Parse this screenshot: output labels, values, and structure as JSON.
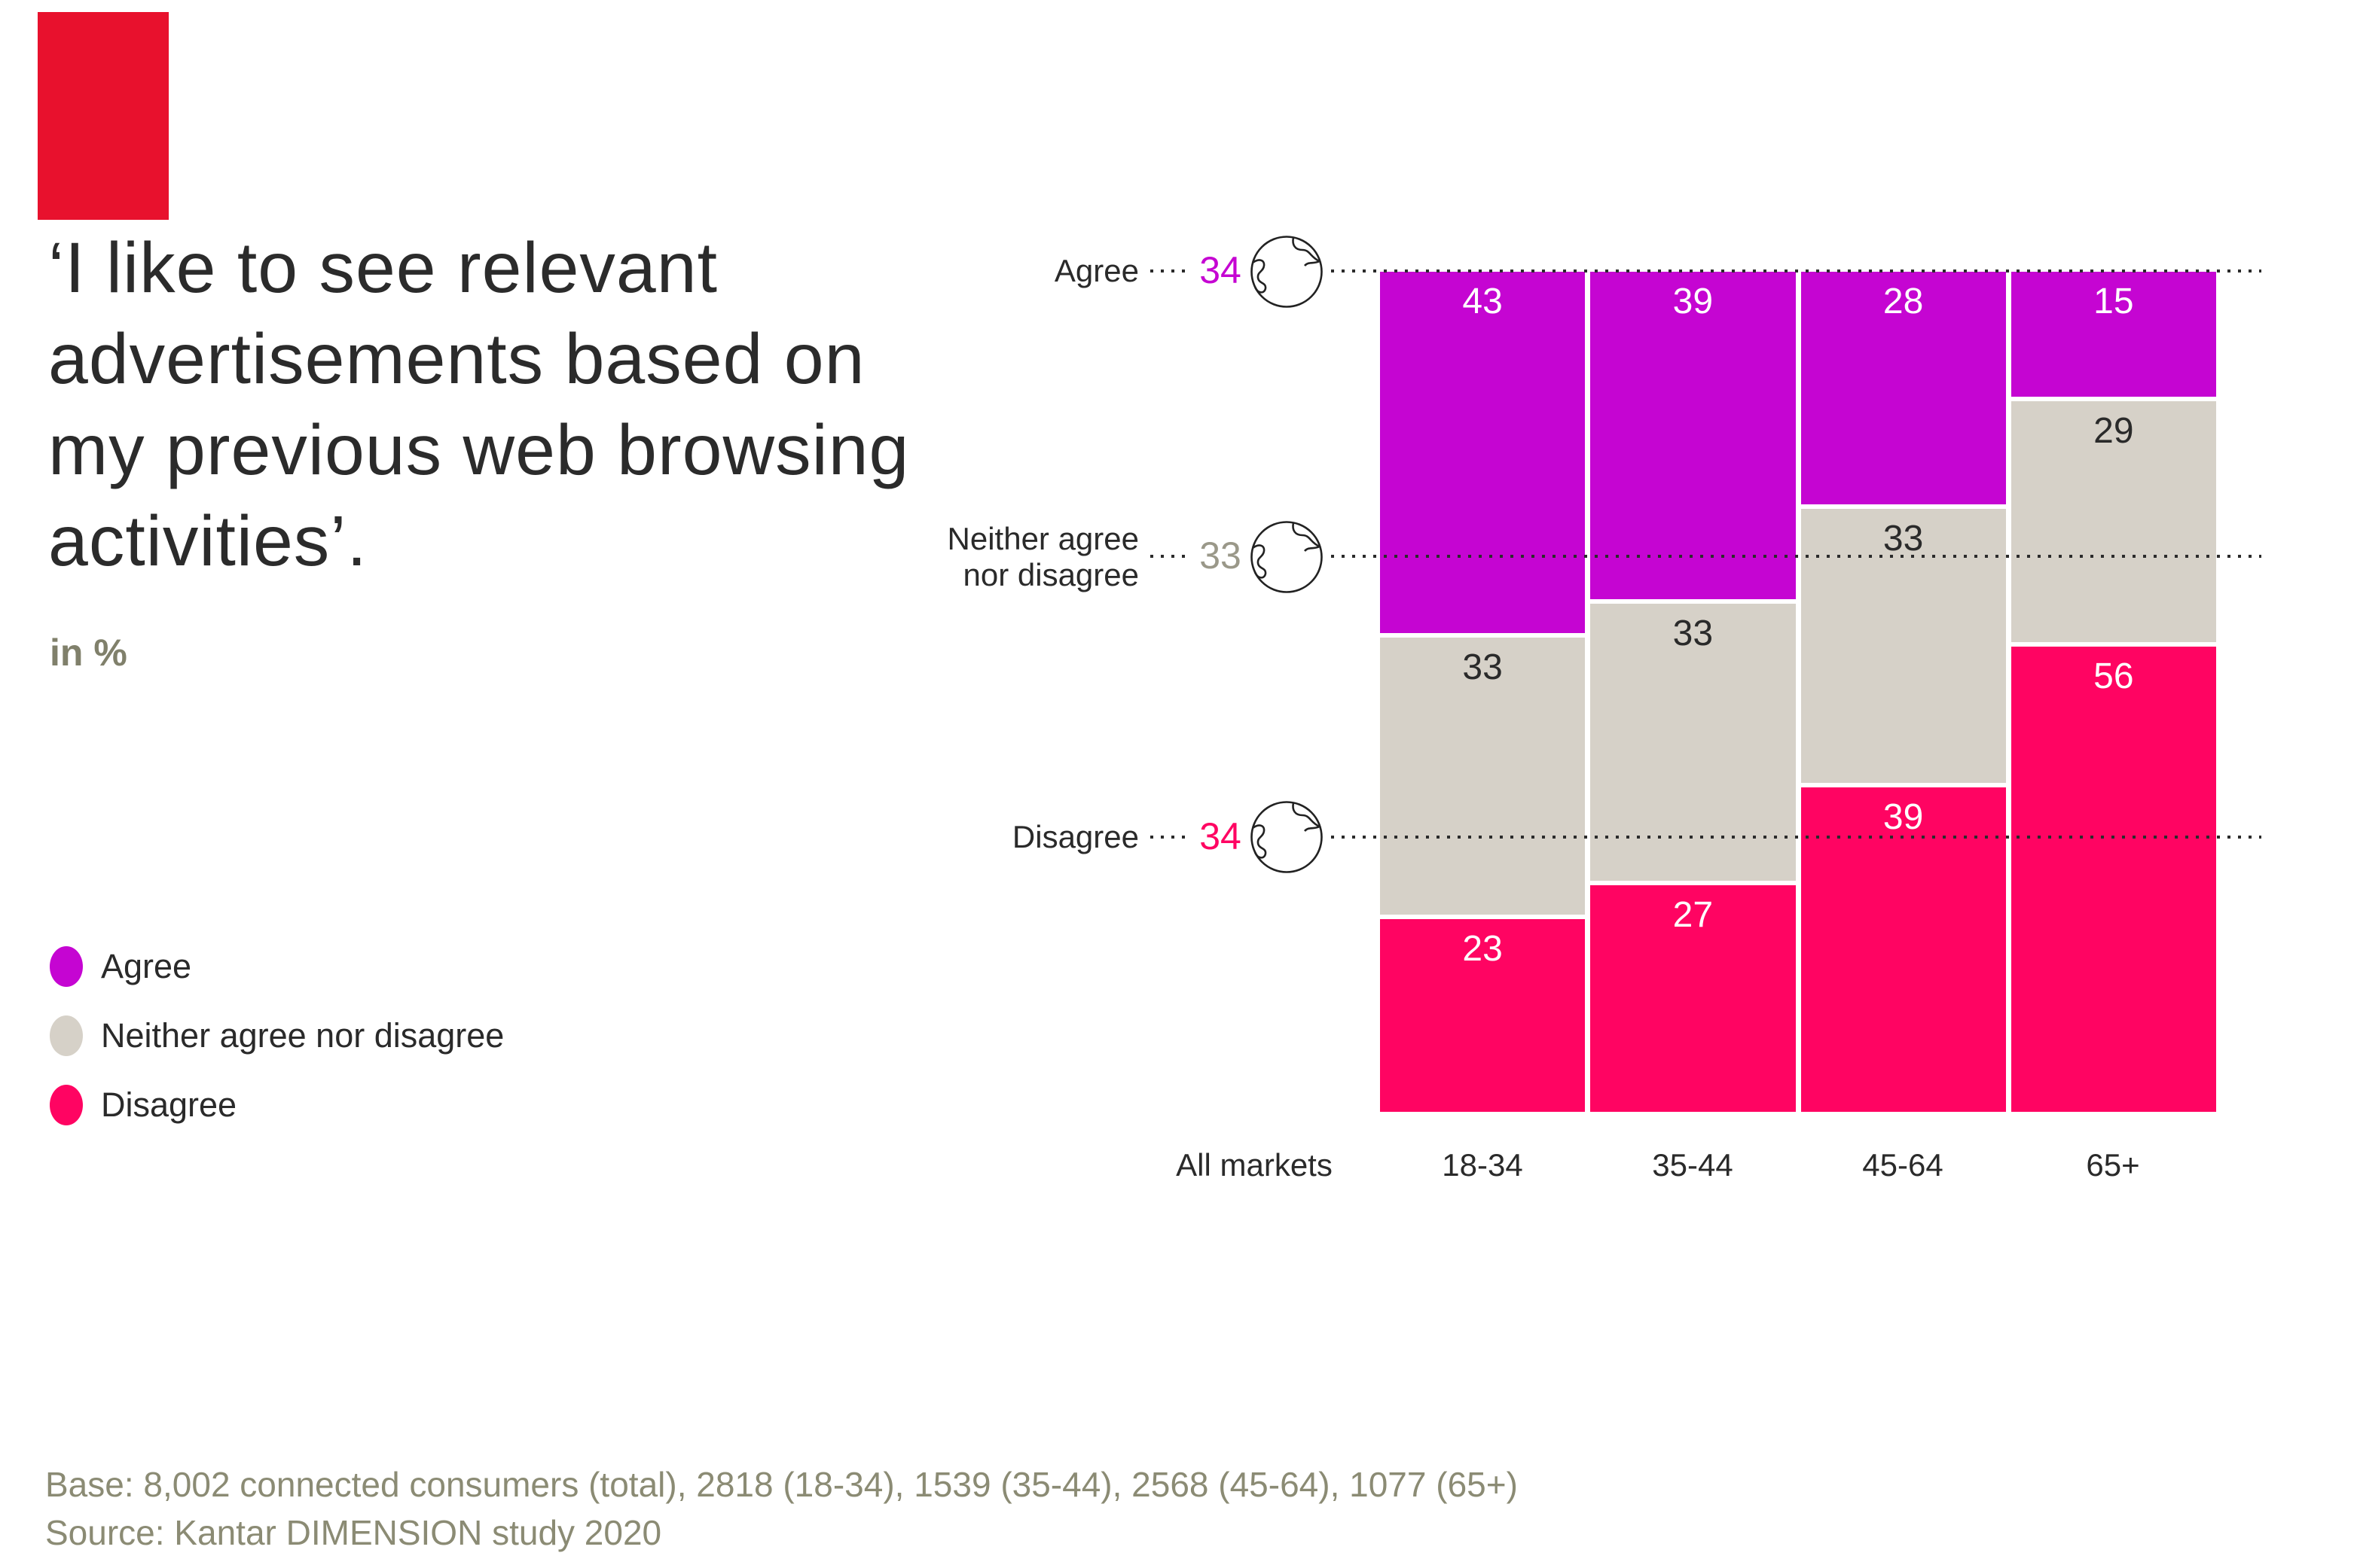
{
  "brand_mark": {
    "color": "#e8112d"
  },
  "title": "‘I like to see relevant advertisements based on my previous web browsing activities’.",
  "unit_label": "in %",
  "legend": {
    "position": "left",
    "items": [
      {
        "label": "Agree",
        "color": "#c505d2"
      },
      {
        "label": "Neither agree nor disagree",
        "color": "#d6d1c8"
      },
      {
        "label": "Disagree",
        "color": "#ff0462"
      }
    ]
  },
  "chart_data": {
    "type": "bar",
    "stacked": true,
    "orientation": "vertical",
    "unit": "%",
    "title": "‘I like to see relevant advertisements based on my previous web browsing activities’.",
    "xlabel": "",
    "ylabel": "in %",
    "grid": "off",
    "ylim": [
      0,
      100
    ],
    "categories": [
      "All markets",
      "18-34",
      "35-44",
      "45-64",
      "65+"
    ],
    "series": [
      {
        "name": "Agree",
        "color": "#c505d2",
        "value_label_color": "#ffffff",
        "axis_number_color": "#c505d2",
        "values": [
          34,
          43,
          39,
          28,
          15
        ]
      },
      {
        "name": "Neither agree nor disagree",
        "color": "#d6d1c8",
        "value_label_color": "#2a2a2a",
        "axis_number_color": "#9a9889",
        "values": [
          33,
          33,
          33,
          33,
          29
        ]
      },
      {
        "name": "Disagree",
        "color": "#ff0462",
        "value_label_color": "#ffffff",
        "axis_number_color": "#ff0462",
        "values": [
          34,
          23,
          27,
          39,
          56
        ]
      }
    ],
    "row_labels": [
      "Agree",
      "Neither agree nor disagree",
      "Disagree"
    ],
    "all_markets_reference": {
      "style": "dotted horizontal lines with globe icons",
      "agree": 34,
      "neither_agree_nor_disagree": 33,
      "disagree": 34
    }
  },
  "footer": {
    "base": "Base: 8,002 connected consumers (total), 2818 (18-34), 1539 (35-44), 2568 (45-64), 1077 (65+)",
    "source": "Source: Kantar DIMENSION study 2020"
  }
}
